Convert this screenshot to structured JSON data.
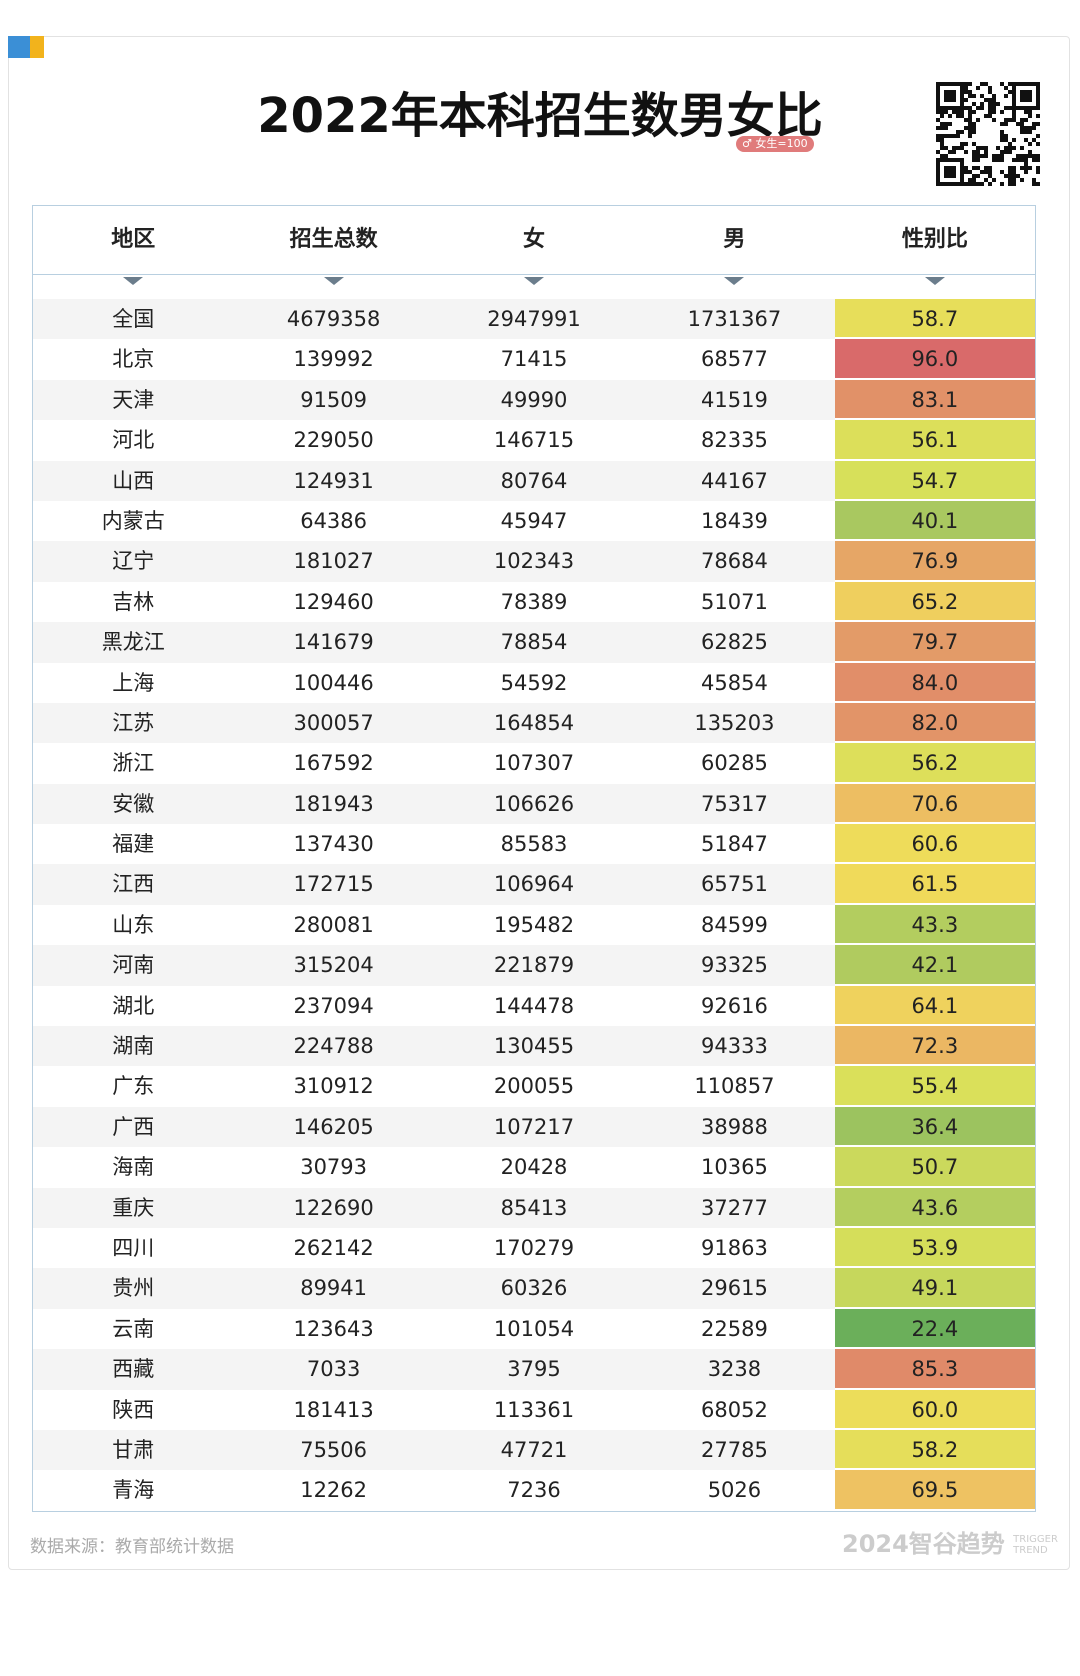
{
  "header": {
    "title": "2022年本科招生数男女比",
    "badge": "♂ 女生=100"
  },
  "table": {
    "columns": [
      "地区",
      "招生总数",
      "女",
      "男",
      "性别比"
    ],
    "rows": [
      [
        "全国",
        "4679358",
        "2947991",
        "1731367",
        "58.7"
      ],
      [
        "北京",
        "139992",
        "71415",
        "68577",
        "96.0"
      ],
      [
        "天津",
        "91509",
        "49990",
        "41519",
        "83.1"
      ],
      [
        "河北",
        "229050",
        "146715",
        "82335",
        "56.1"
      ],
      [
        "山西",
        "124931",
        "80764",
        "44167",
        "54.7"
      ],
      [
        "内蒙古",
        "64386",
        "45947",
        "18439",
        "40.1"
      ],
      [
        "辽宁",
        "181027",
        "102343",
        "78684",
        "76.9"
      ],
      [
        "吉林",
        "129460",
        "78389",
        "51071",
        "65.2"
      ],
      [
        "黑龙江",
        "141679",
        "78854",
        "62825",
        "79.7"
      ],
      [
        "上海",
        "100446",
        "54592",
        "45854",
        "84.0"
      ],
      [
        "江苏",
        "300057",
        "164854",
        "135203",
        "82.0"
      ],
      [
        "浙江",
        "167592",
        "107307",
        "60285",
        "56.2"
      ],
      [
        "安徽",
        "181943",
        "106626",
        "75317",
        "70.6"
      ],
      [
        "福建",
        "137430",
        "85583",
        "51847",
        "60.6"
      ],
      [
        "江西",
        "172715",
        "106964",
        "65751",
        "61.5"
      ],
      [
        "山东",
        "280081",
        "195482",
        "84599",
        "43.3"
      ],
      [
        "河南",
        "315204",
        "221879",
        "93325",
        "42.1"
      ],
      [
        "湖北",
        "237094",
        "144478",
        "92616",
        "64.1"
      ],
      [
        "湖南",
        "224788",
        "130455",
        "94333",
        "72.3"
      ],
      [
        "广东",
        "310912",
        "200055",
        "110857",
        "55.4"
      ],
      [
        "广西",
        "146205",
        "107217",
        "38988",
        "36.4"
      ],
      [
        "海南",
        "30793",
        "20428",
        "10365",
        "50.7"
      ],
      [
        "重庆",
        "122690",
        "85413",
        "37277",
        "43.6"
      ],
      [
        "四川",
        "262142",
        "170279",
        "91863",
        "53.9"
      ],
      [
        "贵州",
        "89941",
        "60326",
        "29615",
        "49.1"
      ],
      [
        "云南",
        "123643",
        "101054",
        "22589",
        "22.4"
      ],
      [
        "西藏",
        "7033",
        "3795",
        "3238",
        "85.3"
      ],
      [
        "陕西",
        "181413",
        "113361",
        "68052",
        "60.0"
      ],
      [
        "甘肃",
        "75506",
        "47721",
        "27785",
        "58.2"
      ],
      [
        "青海",
        "12262",
        "7236",
        "5026",
        "69.5"
      ]
    ]
  },
  "footer": {
    "source": "数据来源：教育部统计数据",
    "brand": "2024智谷趋势",
    "brand_en": "TRIGGER TREND"
  }
}
